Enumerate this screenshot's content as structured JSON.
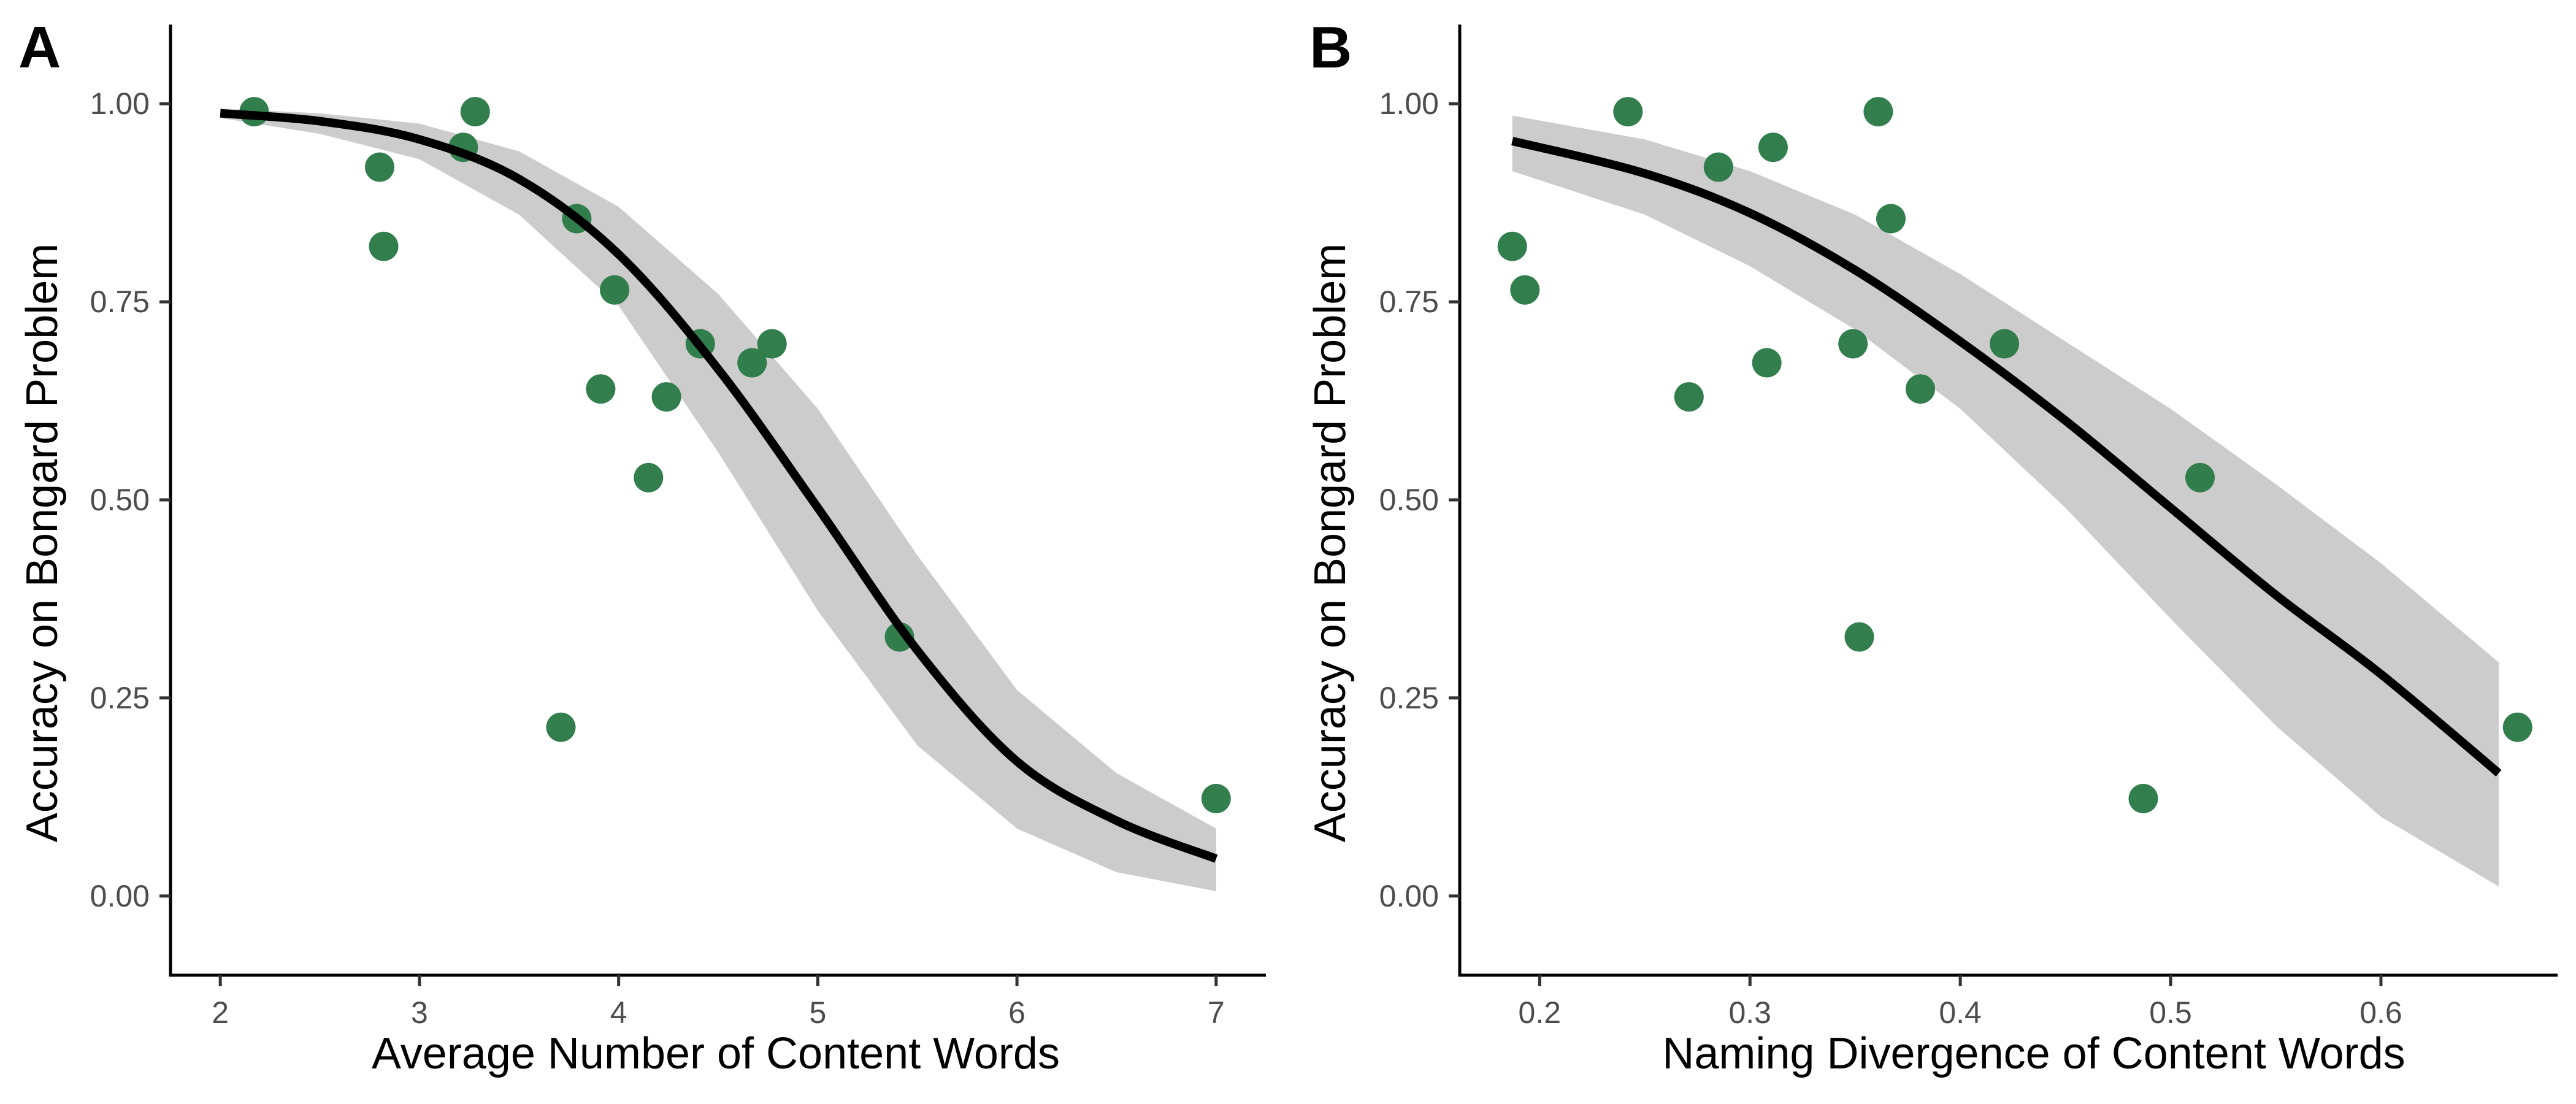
{
  "chart_data": [
    {
      "type": "scatter",
      "panel_label": "A",
      "xlabel": "Average Number of Content Words",
      "ylabel": "Accuracy on Bongard Problem",
      "xlim": [
        1.75,
        7.25
      ],
      "ylim": [
        -0.1,
        1.1
      ],
      "x_ticks": [
        2,
        3,
        4,
        5,
        6,
        7
      ],
      "x_tick_labels": [
        "2",
        "3",
        "4",
        "5",
        "6",
        "7"
      ],
      "y_ticks": [
        0,
        0.25,
        0.5,
        0.75,
        1
      ],
      "y_tick_labels": [
        "0.00",
        "0.25",
        "0.50",
        "0.75",
        "1.00"
      ],
      "grid": false,
      "point_color": "#2b7a47",
      "line_color": "#000000",
      "band_color": "#cccccc",
      "points": [
        {
          "x": 2.17,
          "y": 0.99
        },
        {
          "x": 2.8,
          "y": 0.92
        },
        {
          "x": 2.82,
          "y": 0.82
        },
        {
          "x": 3.22,
          "y": 0.945
        },
        {
          "x": 3.28,
          "y": 0.99
        },
        {
          "x": 3.71,
          "y": 0.213
        },
        {
          "x": 3.79,
          "y": 0.855
        },
        {
          "x": 3.91,
          "y": 0.64
        },
        {
          "x": 3.98,
          "y": 0.765
        },
        {
          "x": 4.15,
          "y": 0.528
        },
        {
          "x": 4.24,
          "y": 0.63
        },
        {
          "x": 4.41,
          "y": 0.697
        },
        {
          "x": 4.67,
          "y": 0.673
        },
        {
          "x": 4.77,
          "y": 0.697
        },
        {
          "x": 5.41,
          "y": 0.327
        },
        {
          "x": 7.0,
          "y": 0.123
        }
      ],
      "fit": {
        "x": [
          2,
          2.5,
          3,
          3.5,
          4,
          4.5,
          5,
          5.5,
          6,
          6.5,
          7
        ],
        "y": [
          0.988,
          0.978,
          0.955,
          0.905,
          0.81,
          0.665,
          0.49,
          0.31,
          0.17,
          0.095,
          0.047
        ]
      },
      "ci_lower": [
        0.982,
        0.962,
        0.93,
        0.86,
        0.745,
        0.56,
        0.36,
        0.19,
        0.085,
        0.03,
        0.006
      ],
      "ci_upper": [
        0.994,
        0.988,
        0.975,
        0.94,
        0.87,
        0.76,
        0.615,
        0.43,
        0.26,
        0.155,
        0.085
      ]
    },
    {
      "type": "scatter",
      "panel_label": "B",
      "xlabel": "Naming Divergence of Content Words",
      "ylabel": "Accuracy on Bongard Problem",
      "xlim": [
        0.162,
        0.684
      ],
      "ylim": [
        -0.1,
        1.1
      ],
      "x_ticks": [
        0.2,
        0.3,
        0.4,
        0.5,
        0.6
      ],
      "x_tick_labels": [
        "0.2",
        "0.3",
        "0.4",
        "0.5",
        "0.6"
      ],
      "y_ticks": [
        0,
        0.25,
        0.5,
        0.75,
        1
      ],
      "y_tick_labels": [
        "0.00",
        "0.25",
        "0.50",
        "0.75",
        "1.00"
      ],
      "grid": false,
      "point_color": "#2b7a47",
      "line_color": "#000000",
      "band_color": "#cccccc",
      "points": [
        {
          "x": 0.187,
          "y": 0.82
        },
        {
          "x": 0.193,
          "y": 0.765
        },
        {
          "x": 0.242,
          "y": 0.99
        },
        {
          "x": 0.271,
          "y": 0.63
        },
        {
          "x": 0.285,
          "y": 0.92
        },
        {
          "x": 0.308,
          "y": 0.673
        },
        {
          "x": 0.311,
          "y": 0.945
        },
        {
          "x": 0.349,
          "y": 0.697
        },
        {
          "x": 0.352,
          "y": 0.327
        },
        {
          "x": 0.361,
          "y": 0.99
        },
        {
          "x": 0.367,
          "y": 0.855
        },
        {
          "x": 0.381,
          "y": 0.64
        },
        {
          "x": 0.421,
          "y": 0.697
        },
        {
          "x": 0.487,
          "y": 0.123
        },
        {
          "x": 0.514,
          "y": 0.528
        },
        {
          "x": 0.665,
          "y": 0.213
        }
      ],
      "fit": {
        "x": [
          0.187,
          0.25,
          0.3,
          0.35,
          0.4,
          0.45,
          0.5,
          0.55,
          0.6,
          0.656
        ],
        "y": [
          0.953,
          0.912,
          0.862,
          0.79,
          0.7,
          0.6,
          0.49,
          0.38,
          0.28,
          0.155
        ]
      },
      "ci_lower": [
        0.915,
        0.86,
        0.795,
        0.715,
        0.615,
        0.49,
        0.35,
        0.215,
        0.1,
        0.012
      ],
      "ci_upper": [
        0.985,
        0.955,
        0.915,
        0.86,
        0.785,
        0.7,
        0.615,
        0.52,
        0.42,
        0.295
      ]
    }
  ]
}
